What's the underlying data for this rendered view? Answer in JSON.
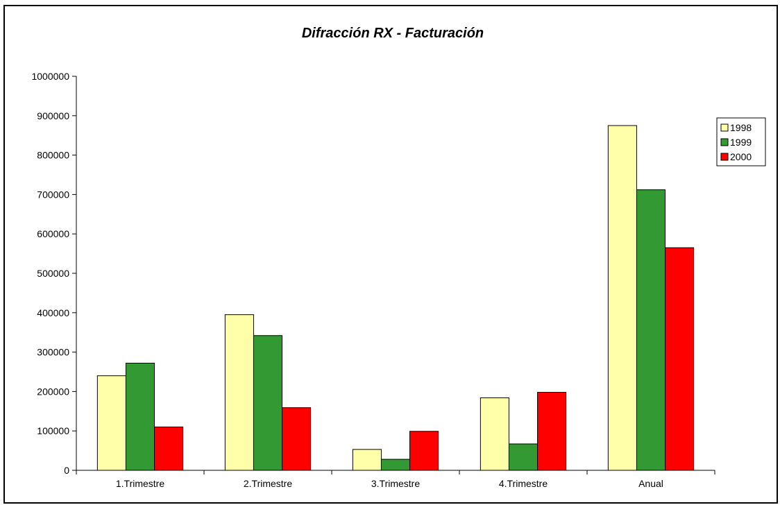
{
  "chart_data": {
    "type": "bar",
    "title": "Difracción RX - Facturación",
    "xlabel": "",
    "ylabel": "",
    "ylim": [
      0,
      1000000
    ],
    "yticks": [
      0,
      100000,
      200000,
      300000,
      400000,
      500000,
      600000,
      700000,
      800000,
      900000,
      1000000
    ],
    "categories": [
      "1.Trimestre",
      "2.Trimestre",
      "3.Trimestre",
      "4.Trimestre",
      "Anual"
    ],
    "series": [
      {
        "name": "1998",
        "color": "#ffffaa",
        "values": [
          240000,
          395000,
          53000,
          184000,
          875000
        ]
      },
      {
        "name": "1999",
        "color": "#339933",
        "values": [
          272000,
          342000,
          28000,
          67000,
          712000
        ]
      },
      {
        "name": "2000",
        "color": "#ff0000",
        "values": [
          110000,
          159000,
          99000,
          198000,
          565000
        ]
      }
    ],
    "grid": false,
    "legend": "right"
  }
}
